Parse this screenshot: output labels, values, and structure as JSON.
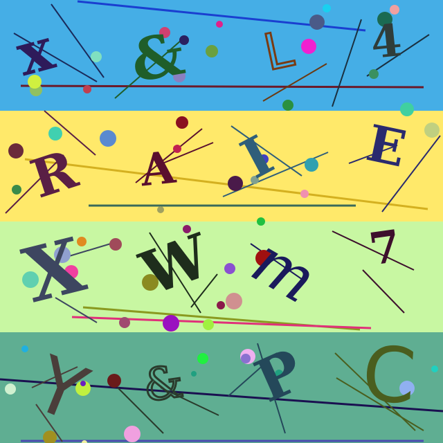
{
  "captcha": {
    "rows": [
      {
        "name": "row-1",
        "background": "#45aee6",
        "characters": [
          {
            "char": "x",
            "color": "#2e1b5a"
          },
          {
            "char": "&",
            "color": "#1f5e2a"
          },
          {
            "char": "L",
            "color": "#7a3b12"
          },
          {
            "char": "4",
            "color": "#2f3d3a"
          }
        ]
      },
      {
        "name": "row-2",
        "background": "#ffe96a",
        "characters": [
          {
            "char": "R",
            "color": "#5a1f45"
          },
          {
            "char": "A",
            "color": "#5a0f2e"
          },
          {
            "char": "I",
            "color": "#2f5e7a"
          },
          {
            "char": "E",
            "color": "#2a2a6e"
          }
        ]
      },
      {
        "name": "row-3",
        "background": "#c8f7a2",
        "characters": [
          {
            "char": "X",
            "color": "#3d4660"
          },
          {
            "char": "W",
            "color": "#1e2d1c"
          },
          {
            "char": "m",
            "color": "#1a1a5c"
          },
          {
            "char": "7",
            "color": "#3d0f2c"
          }
        ]
      },
      {
        "name": "row-4",
        "background": "#5fae92",
        "characters": [
          {
            "char": "Y",
            "color": "#4a3e3a"
          },
          {
            "char": "&",
            "color": "#2a3b2c"
          },
          {
            "char": "P",
            "color": "#24485a"
          },
          {
            "char": "C",
            "color": "#4a5e1e"
          }
        ]
      }
    ]
  }
}
